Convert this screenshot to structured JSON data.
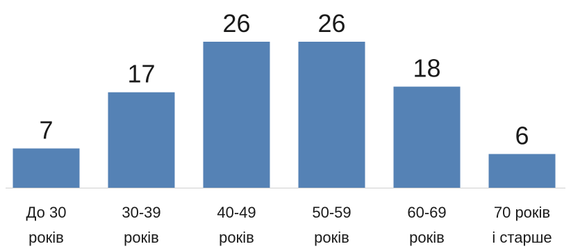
{
  "chart_data": {
    "type": "bar",
    "categories": [
      [
        "До 30",
        "років"
      ],
      [
        "30-39",
        "років"
      ],
      [
        "40-49",
        "років"
      ],
      [
        "50-59",
        "років"
      ],
      [
        "60-69",
        "років"
      ],
      [
        "70 років",
        "і старше"
      ]
    ],
    "values": [
      7,
      17,
      26,
      26,
      18,
      6
    ],
    "data_labels": [
      "7",
      "17",
      "26",
      "26",
      "18",
      "6"
    ],
    "title": "",
    "xlabel": "",
    "ylabel": "",
    "ylim": [
      0,
      26
    ],
    "grid": false,
    "legend": "none",
    "bar_color": "#5582b5",
    "axis_color": "#d0d0d0"
  }
}
